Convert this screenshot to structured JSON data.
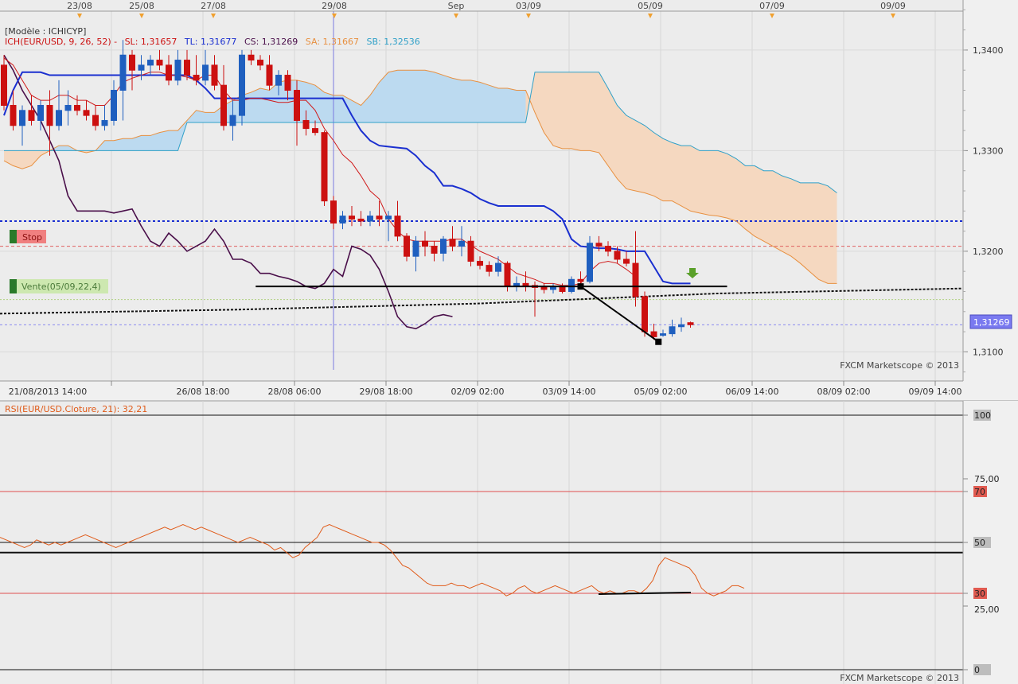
{
  "header": {
    "model_label": "[Modèle : ICHICYP]",
    "indicator_prefix": "ICH(EUR/USD, 9, 26, 52) -",
    "sl": "SL: 1,31657",
    "tl": "TL: 1,31677",
    "cs": "CS: 1,31269",
    "sa": "SA: 1,31667",
    "sb": "SB: 1,32536"
  },
  "top_date_markers": [
    "23/08",
    "25/08",
    "27/08",
    "29/08",
    "Sep",
    "03/09",
    "05/09",
    "07/09",
    "09/09"
  ],
  "x_axis_labels": [
    "21/08/2013 14:00",
    "26/08 18:00",
    "28/08 06:00",
    "29/08 18:00",
    "02/09 02:00",
    "03/09 14:00",
    "05/09 02:00",
    "06/09 14:00",
    "08/09 02:00",
    "09/09 14:00"
  ],
  "price_axis_labels": [
    "1,3400",
    "1,3300",
    "1,3200",
    "1,3100"
  ],
  "current_price_label": "1,31269",
  "stop_label": "Stop",
  "sell_label": "Vente(05/09,22,4)",
  "watermark": "FXCM Marketscope © 2013",
  "rsi": {
    "label": "RSI(EUR/USD.Cloture, 21): 32,21",
    "axis_labels": [
      "100",
      "75,00",
      "70",
      "50",
      "25,00",
      "30",
      "0"
    ],
    "watermark": "FXCM Marketscope © 2013"
  },
  "colors": {
    "bull": "#1f5fbf",
    "bear": "#cc1010",
    "tenkan": "#d01818",
    "kijun": "#1a2fd0",
    "chikou": "#4a0f4a",
    "cloud_up": "#bcdaf0",
    "cloud_down": "#f5d8c0",
    "span_a": "#e89040",
    "span_b": "#2fa0c8",
    "rsi_line": "#e05a18"
  },
  "chart_data": {
    "type": "candlestick",
    "instrument": "EUR/USD",
    "price_range": [
      1.3075,
      1.3445
    ],
    "stop_level": 1.323,
    "sell_level": 1.3205,
    "current_price": 1.31269,
    "candles": [
      {
        "o": 1.3385,
        "h": 1.3395,
        "l": 1.334,
        "c": 1.3345
      },
      {
        "o": 1.3345,
        "h": 1.336,
        "l": 1.332,
        "c": 1.3325
      },
      {
        "o": 1.3325,
        "h": 1.3345,
        "l": 1.3305,
        "c": 1.334
      },
      {
        "o": 1.334,
        "h": 1.3355,
        "l": 1.3325,
        "c": 1.333
      },
      {
        "o": 1.333,
        "h": 1.335,
        "l": 1.332,
        "c": 1.3345
      },
      {
        "o": 1.3345,
        "h": 1.336,
        "l": 1.3295,
        "c": 1.3325
      },
      {
        "o": 1.3325,
        "h": 1.337,
        "l": 1.332,
        "c": 1.334
      },
      {
        "o": 1.334,
        "h": 1.336,
        "l": 1.3325,
        "c": 1.3345
      },
      {
        "o": 1.3345,
        "h": 1.3355,
        "l": 1.3335,
        "c": 1.334
      },
      {
        "o": 1.334,
        "h": 1.335,
        "l": 1.333,
        "c": 1.3335
      },
      {
        "o": 1.3335,
        "h": 1.3345,
        "l": 1.332,
        "c": 1.3325
      },
      {
        "o": 1.3325,
        "h": 1.3345,
        "l": 1.332,
        "c": 1.333
      },
      {
        "o": 1.333,
        "h": 1.337,
        "l": 1.3325,
        "c": 1.336
      },
      {
        "o": 1.336,
        "h": 1.341,
        "l": 1.333,
        "c": 1.3395
      },
      {
        "o": 1.3395,
        "h": 1.34,
        "l": 1.336,
        "c": 1.338
      },
      {
        "o": 1.338,
        "h": 1.3395,
        "l": 1.337,
        "c": 1.3385
      },
      {
        "o": 1.3385,
        "h": 1.3395,
        "l": 1.3375,
        "c": 1.339
      },
      {
        "o": 1.339,
        "h": 1.34,
        "l": 1.338,
        "c": 1.3385
      },
      {
        "o": 1.3385,
        "h": 1.3395,
        "l": 1.3365,
        "c": 1.337
      },
      {
        "o": 1.337,
        "h": 1.34,
        "l": 1.3365,
        "c": 1.339
      },
      {
        "o": 1.339,
        "h": 1.34,
        "l": 1.337,
        "c": 1.3375
      },
      {
        "o": 1.3375,
        "h": 1.3395,
        "l": 1.3365,
        "c": 1.337
      },
      {
        "o": 1.337,
        "h": 1.34,
        "l": 1.3365,
        "c": 1.3385
      },
      {
        "o": 1.3385,
        "h": 1.3395,
        "l": 1.336,
        "c": 1.3365
      },
      {
        "o": 1.3365,
        "h": 1.3385,
        "l": 1.332,
        "c": 1.3325
      },
      {
        "o": 1.3325,
        "h": 1.335,
        "l": 1.331,
        "c": 1.3335
      },
      {
        "o": 1.3335,
        "h": 1.34,
        "l": 1.3325,
        "c": 1.3395
      },
      {
        "o": 1.3395,
        "h": 1.34,
        "l": 1.3385,
        "c": 1.339
      },
      {
        "o": 1.339,
        "h": 1.3395,
        "l": 1.338,
        "c": 1.3385
      },
      {
        "o": 1.3385,
        "h": 1.3395,
        "l": 1.336,
        "c": 1.3365
      },
      {
        "o": 1.3365,
        "h": 1.338,
        "l": 1.3355,
        "c": 1.3375
      },
      {
        "o": 1.3375,
        "h": 1.338,
        "l": 1.335,
        "c": 1.336
      },
      {
        "o": 1.336,
        "h": 1.337,
        "l": 1.3305,
        "c": 1.333
      },
      {
        "o": 1.333,
        "h": 1.334,
        "l": 1.3315,
        "c": 1.3322
      },
      {
        "o": 1.3322,
        "h": 1.333,
        "l": 1.3315,
        "c": 1.3318
      },
      {
        "o": 1.3318,
        "h": 1.332,
        "l": 1.3245,
        "c": 1.325
      },
      {
        "o": 1.325,
        "h": 1.3255,
        "l": 1.3222,
        "c": 1.3228
      },
      {
        "o": 1.3228,
        "h": 1.324,
        "l": 1.3222,
        "c": 1.3235
      },
      {
        "o": 1.3235,
        "h": 1.3245,
        "l": 1.3225,
        "c": 1.3232
      },
      {
        "o": 1.3232,
        "h": 1.324,
        "l": 1.3225,
        "c": 1.323
      },
      {
        "o": 1.323,
        "h": 1.324,
        "l": 1.3225,
        "c": 1.3235
      },
      {
        "o": 1.3235,
        "h": 1.325,
        "l": 1.3225,
        "c": 1.3232
      },
      {
        "o": 1.3232,
        "h": 1.324,
        "l": 1.321,
        "c": 1.3235
      },
      {
        "o": 1.3235,
        "h": 1.325,
        "l": 1.321,
        "c": 1.3215
      },
      {
        "o": 1.3215,
        "h": 1.3218,
        "l": 1.319,
        "c": 1.3195
      },
      {
        "o": 1.3195,
        "h": 1.3215,
        "l": 1.318,
        "c": 1.321
      },
      {
        "o": 1.321,
        "h": 1.322,
        "l": 1.3195,
        "c": 1.3205
      },
      {
        "o": 1.3205,
        "h": 1.321,
        "l": 1.319,
        "c": 1.3198
      },
      {
        "o": 1.3198,
        "h": 1.3215,
        "l": 1.319,
        "c": 1.3212
      },
      {
        "o": 1.3212,
        "h": 1.3225,
        "l": 1.32,
        "c": 1.3205
      },
      {
        "o": 1.3205,
        "h": 1.3225,
        "l": 1.3195,
        "c": 1.321
      },
      {
        "o": 1.321,
        "h": 1.3215,
        "l": 1.3185,
        "c": 1.319
      },
      {
        "o": 1.319,
        "h": 1.3195,
        "l": 1.3182,
        "c": 1.3186
      },
      {
        "o": 1.3186,
        "h": 1.319,
        "l": 1.3175,
        "c": 1.318
      },
      {
        "o": 1.318,
        "h": 1.3195,
        "l": 1.3175,
        "c": 1.3188
      },
      {
        "o": 1.3188,
        "h": 1.319,
        "l": 1.316,
        "c": 1.3165
      },
      {
        "o": 1.3165,
        "h": 1.3175,
        "l": 1.316,
        "c": 1.3168
      },
      {
        "o": 1.3168,
        "h": 1.318,
        "l": 1.316,
        "c": 1.3166
      },
      {
        "o": 1.3166,
        "h": 1.317,
        "l": 1.3135,
        "c": 1.3164
      },
      {
        "o": 1.3164,
        "h": 1.3168,
        "l": 1.3158,
        "c": 1.3162
      },
      {
        "o": 1.3162,
        "h": 1.3168,
        "l": 1.3158,
        "c": 1.3164
      },
      {
        "o": 1.3164,
        "h": 1.3168,
        "l": 1.3158,
        "c": 1.316
      },
      {
        "o": 1.316,
        "h": 1.3175,
        "l": 1.3158,
        "c": 1.3172
      },
      {
        "o": 1.3172,
        "h": 1.318,
        "l": 1.3165,
        "c": 1.317
      },
      {
        "o": 1.317,
        "h": 1.3215,
        "l": 1.3168,
        "c": 1.3208
      },
      {
        "o": 1.3208,
        "h": 1.3215,
        "l": 1.32,
        "c": 1.3205
      },
      {
        "o": 1.3205,
        "h": 1.321,
        "l": 1.3195,
        "c": 1.32
      },
      {
        "o": 1.32,
        "h": 1.3205,
        "l": 1.3188,
        "c": 1.3192
      },
      {
        "o": 1.3192,
        "h": 1.32,
        "l": 1.3185,
        "c": 1.3188
      },
      {
        "o": 1.3188,
        "h": 1.322,
        "l": 1.3145,
        "c": 1.3155
      },
      {
        "o": 1.3155,
        "h": 1.316,
        "l": 1.3115,
        "c": 1.312
      },
      {
        "o": 1.312,
        "h": 1.3128,
        "l": 1.3112,
        "c": 1.3115
      },
      {
        "o": 1.3117,
        "h": 1.3122,
        "l": 1.3115,
        "c": 1.3118
      },
      {
        "o": 1.3118,
        "h": 1.3132,
        "l": 1.3115,
        "c": 1.3125
      },
      {
        "o": 1.3125,
        "h": 1.3134,
        "l": 1.312,
        "c": 1.3127
      },
      {
        "o": 1.3129,
        "h": 1.313,
        "l": 1.3124,
        "c": 1.3127
      }
    ],
    "tenkan": [
      1.3392,
      1.3385,
      1.337,
      1.3355,
      1.335,
      1.335,
      1.3355,
      1.3355,
      1.335,
      1.335,
      1.3345,
      1.3345,
      1.3355,
      1.3368,
      1.3372,
      1.3375,
      1.3378,
      1.3378,
      1.3375,
      1.3375,
      1.3373,
      1.337,
      1.3375,
      1.3375,
      1.336,
      1.335,
      1.335,
      1.3352,
      1.3352,
      1.335,
      1.3348,
      1.3348,
      1.335,
      1.335,
      1.334,
      1.3322,
      1.331,
      1.3296,
      1.3288,
      1.3275,
      1.326,
      1.3252,
      1.3232,
      1.322,
      1.3212,
      1.321,
      1.321,
      1.321,
      1.321,
      1.3212,
      1.3212,
      1.3206,
      1.32,
      1.3196,
      1.3192,
      1.3185,
      1.3178,
      1.3175,
      1.3172,
      1.3168,
      1.3168,
      1.3166,
      1.3166,
      1.3168,
      1.318,
      1.3188,
      1.319,
      1.3188,
      1.3182,
      1.3175
    ],
    "kijun": [
      1.3335,
      1.336,
      1.3378,
      1.3378,
      1.3378,
      1.3375,
      1.3375,
      1.3375,
      1.3375,
      1.3375,
      1.3375,
      1.3375,
      1.3375,
      1.3375,
      1.3375,
      1.3375,
      1.3375,
      1.3375,
      1.3375,
      1.3375,
      1.3375,
      1.337,
      1.3362,
      1.3352,
      1.3352,
      1.3352,
      1.3352,
      1.3352,
      1.3352,
      1.3352,
      1.3352,
      1.3352,
      1.3352,
      1.3352,
      1.3352,
      1.3352,
      1.3352,
      1.3352,
      1.3335,
      1.332,
      1.331,
      1.3305,
      1.3304,
      1.3303,
      1.3302,
      1.3295,
      1.3285,
      1.3278,
      1.3265,
      1.3265,
      1.3262,
      1.3258,
      1.3252,
      1.3248,
      1.3245,
      1.3245,
      1.3245,
      1.3245,
      1.3245,
      1.3245,
      1.324,
      1.3232,
      1.3212,
      1.3205,
      1.3204,
      1.3203,
      1.3203,
      1.3202,
      1.32,
      1.32,
      1.32,
      1.3185,
      1.317,
      1.3168,
      1.3168,
      1.3168
    ],
    "span_a": [
      1.329,
      1.3285,
      1.3282,
      1.3285,
      1.3295,
      1.33,
      1.3305,
      1.3305,
      1.33,
      1.3298,
      1.33,
      1.331,
      1.331,
      1.3312,
      1.3312,
      1.3315,
      1.3315,
      1.3318,
      1.332,
      1.332,
      1.333,
      1.334,
      1.3338,
      1.3338,
      1.3345,
      1.335,
      1.3355,
      1.3358,
      1.3362,
      1.336,
      1.3368,
      1.337,
      1.337,
      1.3368,
      1.3365,
      1.3358,
      1.3355,
      1.3355,
      1.335,
      1.3345,
      1.3355,
      1.3368,
      1.3378,
      1.338,
      1.338,
      1.338,
      1.338,
      1.3378,
      1.3375,
      1.3372,
      1.337,
      1.337,
      1.3368,
      1.3365,
      1.3362,
      1.3362,
      1.336,
      1.336,
      1.3338,
      1.3318,
      1.3305,
      1.3302,
      1.3302,
      1.33,
      1.33,
      1.3298,
      1.3285,
      1.3272,
      1.3262,
      1.326,
      1.3258,
      1.3255,
      1.325,
      1.325,
      1.3245,
      1.324,
      1.3238,
      1.3236,
      1.3235,
      1.3233,
      1.323,
      1.3222,
      1.3215,
      1.321,
      1.3205,
      1.32,
      1.3195,
      1.3188,
      1.318,
      1.3172,
      1.3168,
      1.3168
    ],
    "span_b": [
      1.33,
      1.33,
      1.33,
      1.33,
      1.33,
      1.33,
      1.33,
      1.33,
      1.33,
      1.33,
      1.33,
      1.33,
      1.33,
      1.33,
      1.33,
      1.33,
      1.33,
      1.33,
      1.33,
      1.33,
      1.3328,
      1.3328,
      1.3328,
      1.3328,
      1.3328,
      1.3328,
      1.3328,
      1.3328,
      1.3328,
      1.3328,
      1.3328,
      1.3328,
      1.3328,
      1.3328,
      1.3328,
      1.3328,
      1.3328,
      1.3328,
      1.3328,
      1.3328,
      1.3328,
      1.3328,
      1.3328,
      1.3328,
      1.3328,
      1.3328,
      1.3328,
      1.3328,
      1.3328,
      1.3328,
      1.3328,
      1.3328,
      1.3328,
      1.3328,
      1.3328,
      1.3328,
      1.3328,
      1.3328,
      1.3378,
      1.3378,
      1.3378,
      1.3378,
      1.3378,
      1.3378,
      1.3378,
      1.3378,
      1.3362,
      1.3345,
      1.3335,
      1.333,
      1.3325,
      1.3318,
      1.3312,
      1.3308,
      1.3305,
      1.3305,
      1.33,
      1.33,
      1.33,
      1.3297,
      1.3292,
      1.3285,
      1.3285,
      1.328,
      1.328,
      1.3275,
      1.3272,
      1.3268,
      1.3268,
      1.3268,
      1.3265,
      1.3258
    ],
    "chikou": [
      1.3395,
      1.338,
      1.336,
      1.3345,
      1.333,
      1.331,
      1.329,
      1.3255,
      1.324,
      1.324,
      1.324,
      1.324,
      1.3238,
      1.324,
      1.3242,
      1.3225,
      1.321,
      1.3205,
      1.3218,
      1.321,
      1.32,
      1.3205,
      1.321,
      1.3222,
      1.321,
      1.3192,
      1.3192,
      1.3188,
      1.3178,
      1.3178,
      1.3175,
      1.3173,
      1.317,
      1.3165,
      1.3163,
      1.3168,
      1.3182,
      1.3175,
      1.3205,
      1.3202,
      1.3196,
      1.3182,
      1.316,
      1.3135,
      1.3125,
      1.3123,
      1.3128,
      1.3135,
      1.3137,
      1.3135
    ],
    "trend_lines": [
      {
        "from": [
          27.5,
          1.3165
        ],
        "to": [
          63,
          1.3165
        ],
        "color": "#000000",
        "note": "horizontal support"
      },
      {
        "from": [
          63,
          1.3165
        ],
        "to": [
          79,
          1.3165
        ],
        "color": "#000000"
      },
      {
        "from": [
          63,
          1.3165
        ],
        "to": [
          71.5,
          1.311
        ],
        "color": "#000000",
        "note": "breakdown"
      }
    ],
    "rsi_range": [
      0,
      100
    ],
    "rsi_levels": {
      "overbought": 70,
      "oversold": 30,
      "mid": 50
    },
    "rsi_current": 32.21,
    "rsi": [
      52,
      51,
      50,
      49,
      48,
      49,
      51,
      50,
      49,
      50,
      49,
      50,
      51,
      52,
      53,
      52,
      51,
      50,
      49,
      48,
      49,
      50,
      51,
      52,
      53,
      54,
      55,
      56,
      55,
      56,
      57,
      56,
      55,
      56,
      55,
      54,
      53,
      52,
      51,
      50,
      51,
      52,
      51,
      50,
      49,
      47,
      48,
      46,
      44,
      45,
      48,
      50,
      52,
      56,
      57,
      56,
      55,
      54,
      53,
      52,
      51,
      50,
      50,
      49,
      47,
      44,
      41,
      40,
      38,
      36,
      34,
      33,
      33,
      33,
      34,
      33,
      33,
      32,
      33,
      34,
      33,
      32,
      31,
      29,
      30,
      32,
      33,
      31,
      30,
      31,
      32,
      33,
      32,
      31,
      30,
      31,
      32,
      33,
      31,
      30,
      31,
      30,
      30,
      31,
      31,
      30,
      32,
      35,
      41,
      44,
      43,
      42,
      41,
      40,
      37,
      32,
      30,
      29,
      30,
      31,
      33,
      33,
      32
    ]
  }
}
